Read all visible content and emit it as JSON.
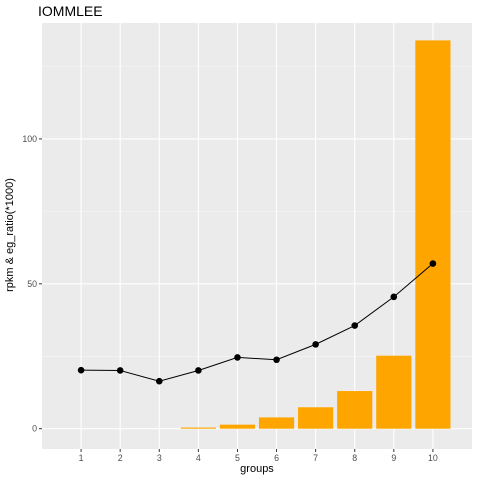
{
  "chart_data": {
    "type": "bar",
    "title": "IOMMLEE",
    "xlabel": "groups",
    "ylabel": "rpkm & eg_ratio(*1000)",
    "categories": [
      "1",
      "2",
      "3",
      "4",
      "5",
      "6",
      "7",
      "8",
      "9",
      "10"
    ],
    "ylim": [
      -7,
      140
    ],
    "yticks": [
      0,
      50,
      100
    ],
    "grid": true,
    "legend": "none",
    "series": [
      {
        "kind": "bar",
        "color": "#FFA500",
        "values": [
          0,
          0,
          0,
          0.4,
          1.4,
          3.9,
          7.4,
          13.0,
          25.2,
          134.0
        ]
      },
      {
        "kind": "line",
        "color": "#000000",
        "values": [
          20.2,
          20.1,
          16.4,
          20.1,
          24.6,
          23.8,
          29.1,
          35.6,
          45.5,
          57.0
        ]
      }
    ],
    "colors": {
      "panel": "#EBEBEB",
      "grid_major": "#FFFFFF",
      "tick": "#333333"
    }
  }
}
